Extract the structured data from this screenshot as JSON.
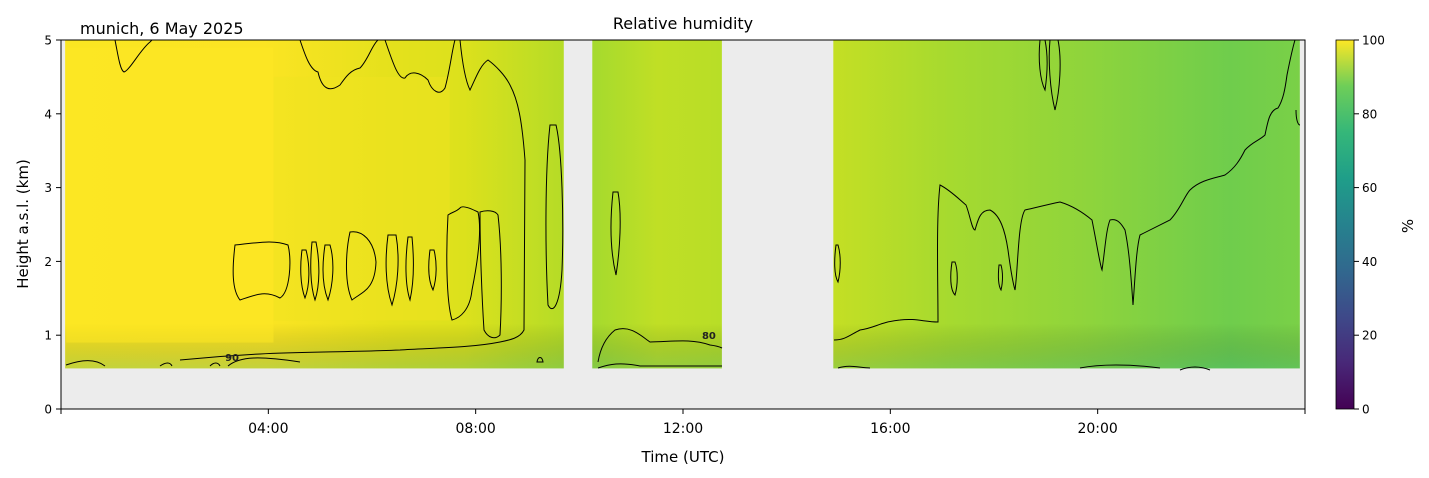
{
  "chart_data": {
    "type": "heatmap",
    "title": "Relative humidity",
    "location_date": "munich, 6 May 2025",
    "xlabel": "Time (UTC)",
    "ylabel": "Height a.s.l. (km)",
    "xlim_hours": [
      0,
      24
    ],
    "ylim": [
      0,
      5
    ],
    "x_ticks": [
      {
        "hour": 4,
        "label": "04:00"
      },
      {
        "hour": 8,
        "label": "08:00"
      },
      {
        "hour": 12,
        "label": "12:00"
      },
      {
        "hour": 16,
        "label": "16:00"
      },
      {
        "hour": 20,
        "label": "20:00"
      }
    ],
    "y_ticks": [
      "0",
      "1",
      "2",
      "3",
      "4",
      "5"
    ],
    "colorbar": {
      "label": "%",
      "range": [
        0,
        100
      ],
      "ticks": [
        "0",
        "20",
        "40",
        "60",
        "80",
        "100"
      ],
      "colormap": [
        "#440154",
        "#3b528b",
        "#21918c",
        "#5ec962",
        "#fde725"
      ]
    },
    "missing_color": "#ececec",
    "data_segments": [
      {
        "start_hour": 0.08,
        "end_hour": 9.7,
        "min_height_km": 0.55,
        "typical_rh": 95
      },
      {
        "start_hour": 10.25,
        "end_hour": 12.75,
        "min_height_km": 0.55,
        "typical_rh": 86
      },
      {
        "start_hour": 14.9,
        "end_hour": 23.9,
        "min_height_km": 0.55,
        "typical_rh": 80
      }
    ],
    "contour_levels": [
      80,
      90
    ],
    "contour_labels": [
      {
        "text": "90",
        "hour": 3.3,
        "height_km": 0.65
      },
      {
        "text": "80",
        "hour": 12.5,
        "height_km": 0.95
      }
    ]
  }
}
